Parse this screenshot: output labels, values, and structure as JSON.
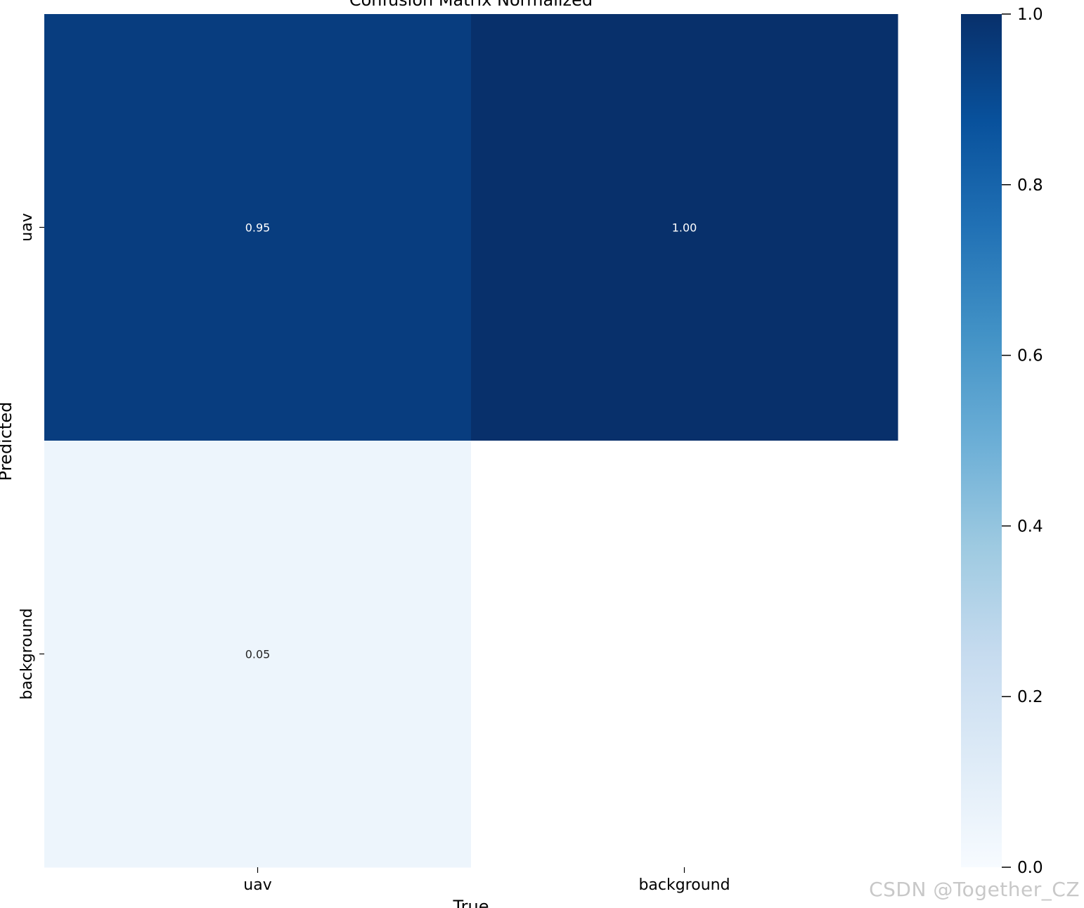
{
  "chart_data": {
    "type": "heatmap",
    "title": "Confusion Matrix Normalized",
    "xlabel": "True",
    "ylabel": "Predicted",
    "x_categories": [
      "uav",
      "background"
    ],
    "y_categories": [
      "uav",
      "background"
    ],
    "matrix": [
      [
        0.95,
        1.0
      ],
      [
        0.05,
        null
      ]
    ],
    "cell_labels": [
      [
        "0.95",
        "1.00"
      ],
      [
        "0.05",
        ""
      ]
    ],
    "colormap": "Blues",
    "colorbar": {
      "range": [
        0.0,
        1.0
      ],
      "ticks": [
        0.0,
        0.2,
        0.4,
        0.6,
        0.8,
        1.0
      ],
      "tick_labels": [
        "0.0",
        "0.2",
        "0.4",
        "0.6",
        "0.8",
        "1.0"
      ]
    }
  },
  "watermark": "CSDN @Together_CZ"
}
